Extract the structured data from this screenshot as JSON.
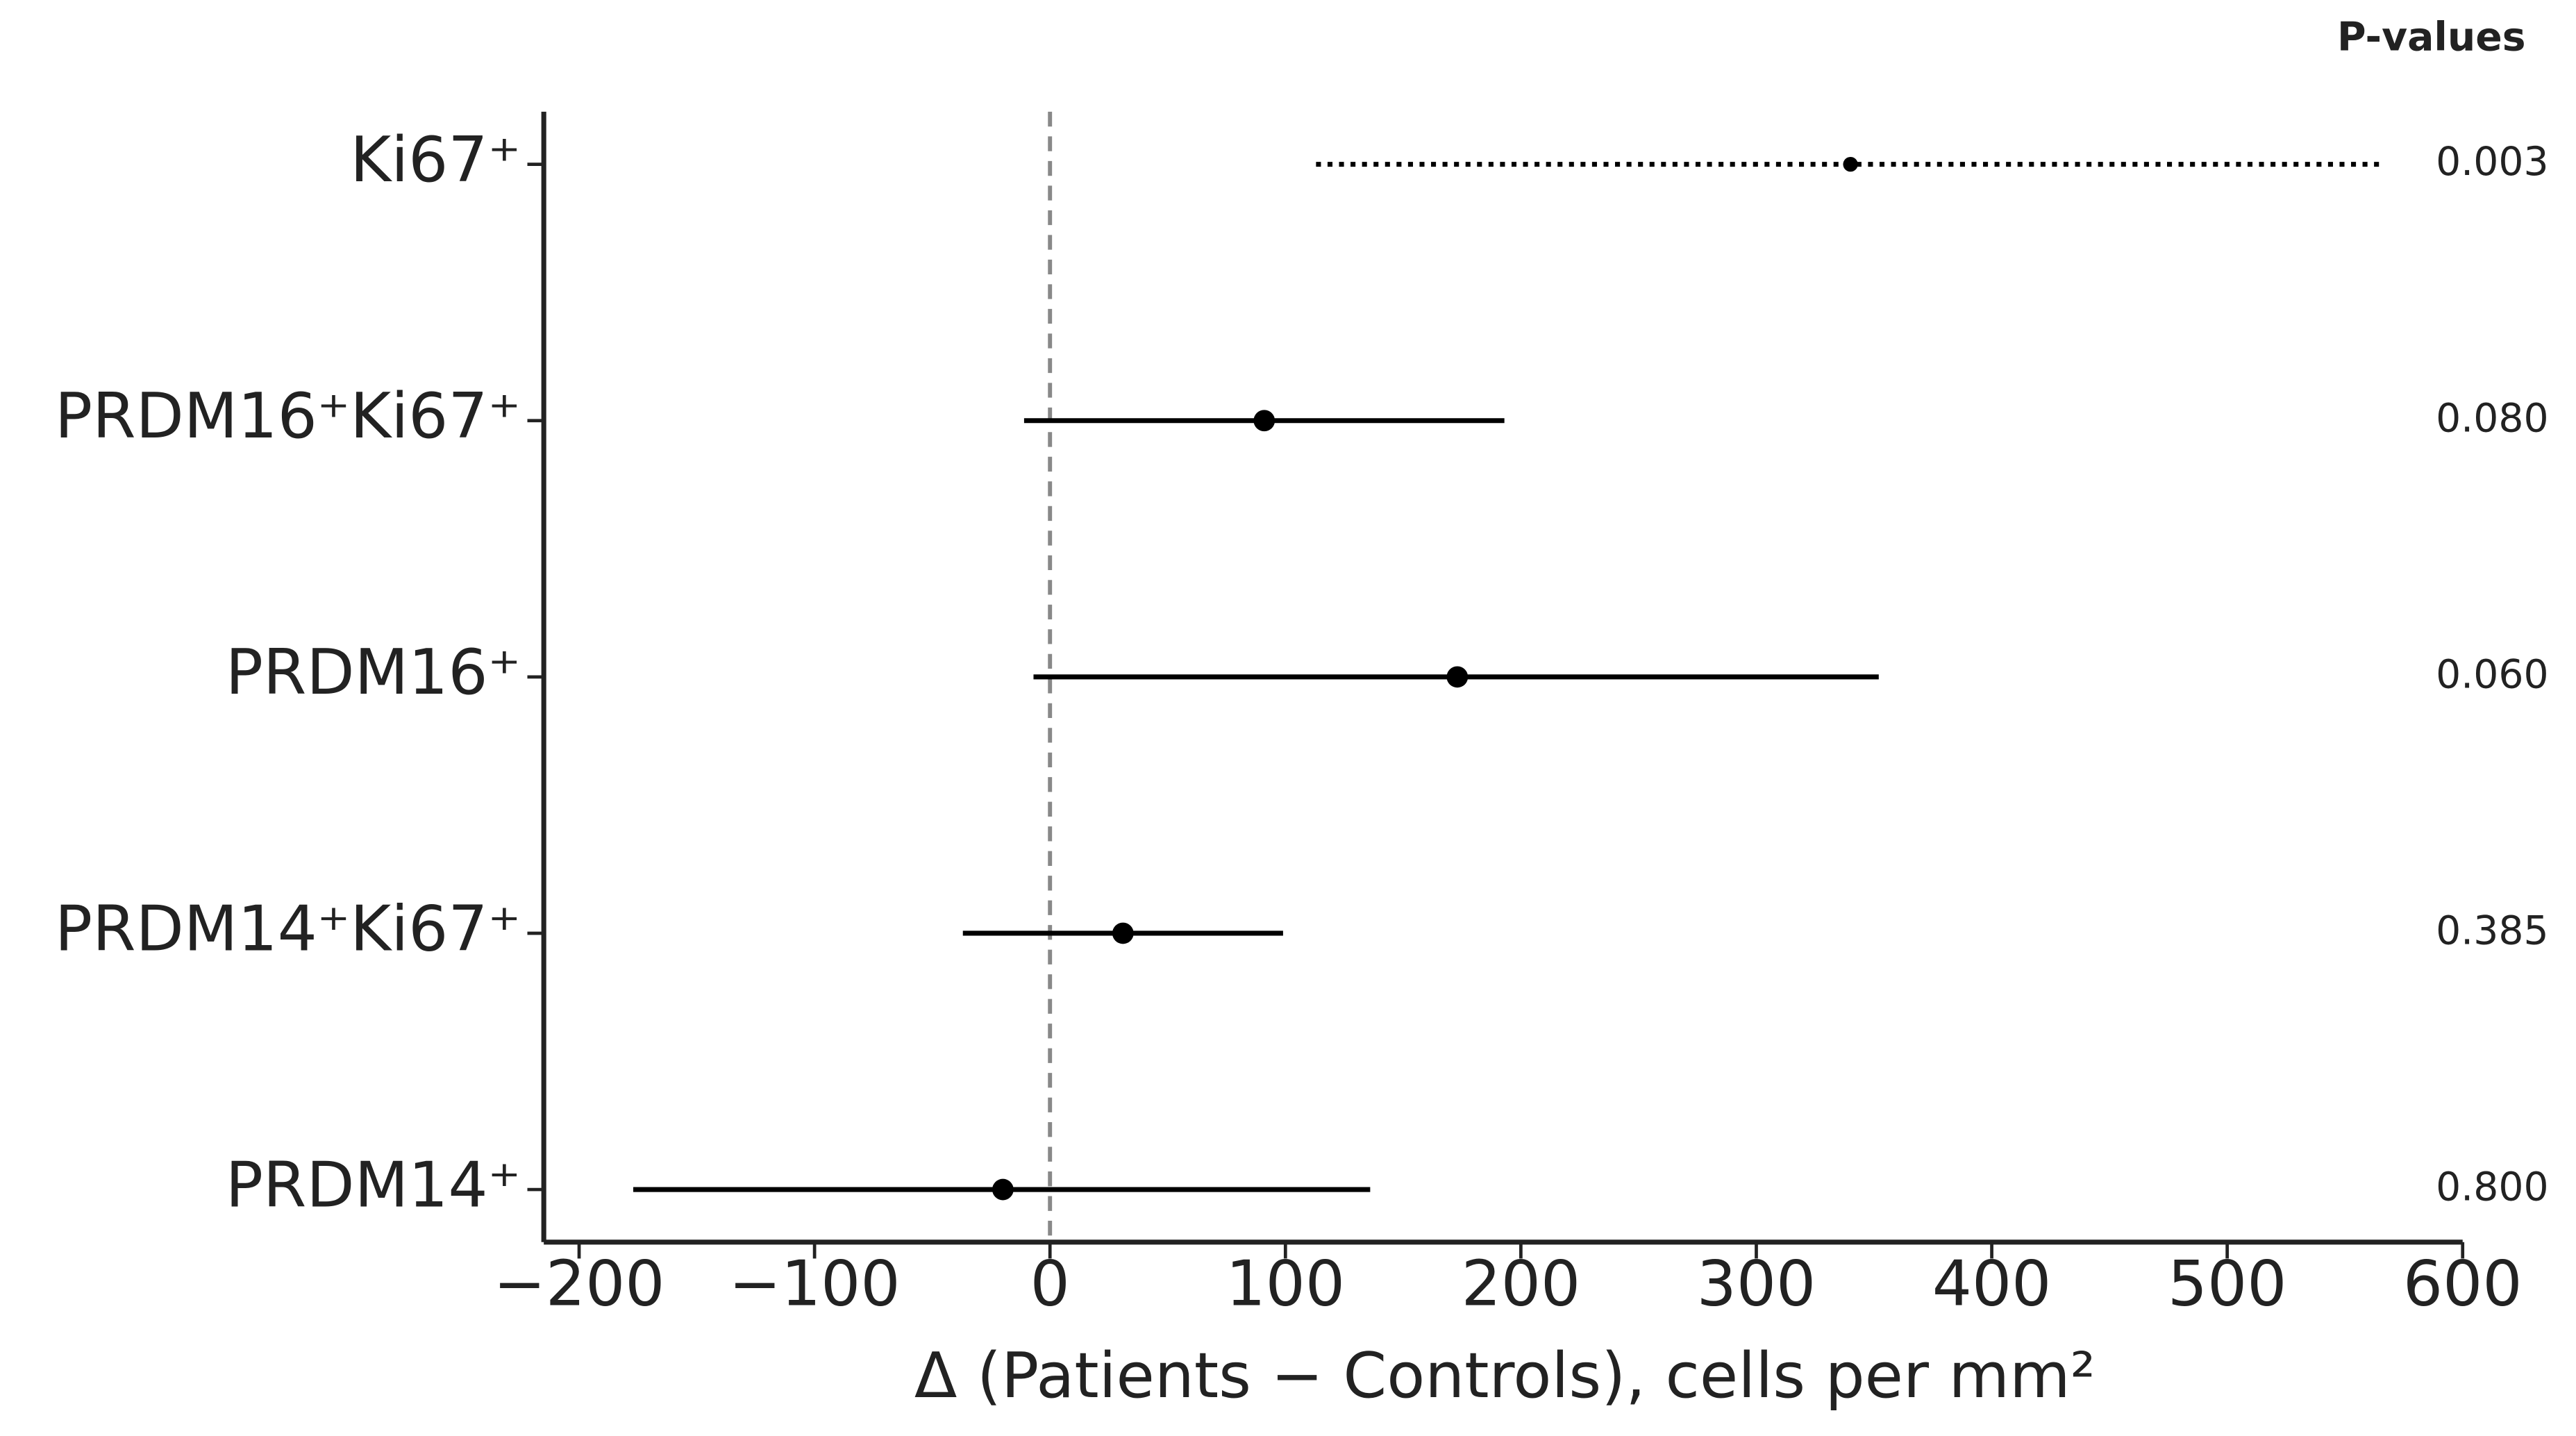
{
  "chart_data": {
    "type": "forest",
    "categories": [
      "Ki67⁺",
      "PRDM16⁺Ki67⁺",
      "PRDM16⁺",
      "PRDM14⁺Ki67⁺",
      "PRDM14⁺"
    ],
    "values": [
      340,
      91,
      173,
      31,
      -20
    ],
    "ci_low": [
      113,
      -11,
      -7,
      -37,
      -177
    ],
    "ci_high": [
      566,
      193,
      352,
      99,
      136
    ],
    "line_styles": [
      "dotted",
      "solid",
      "solid",
      "solid",
      "solid"
    ],
    "color": "#000000",
    "p_values_title": "P-values",
    "p_values": [
      "0.003",
      "0.080",
      "0.060",
      "0.385",
      "0.800"
    ],
    "reference_line": 0,
    "xlabel": "Δ (Patients − Controls), cells per mm²",
    "xlim": [
      -215,
      600
    ],
    "xticks": [
      {
        "value": -200,
        "label": "−200"
      },
      {
        "value": -100,
        "label": "−100"
      },
      0,
      100,
      200,
      300,
      400,
      500,
      600
    ]
  }
}
